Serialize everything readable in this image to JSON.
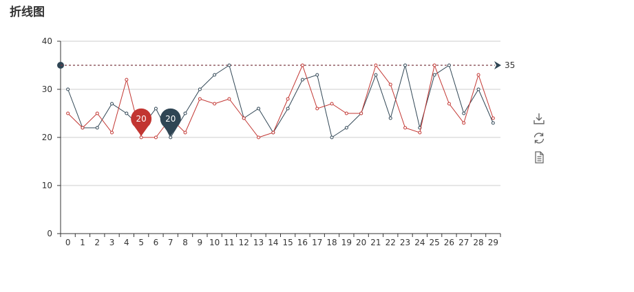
{
  "title": "折线图",
  "markline_label": "35",
  "colors": {
    "series_red": "#c23531",
    "series_dark": "#2f4554",
    "grid": "#cccccc",
    "axis": "#333333",
    "markline": "#7b3a44"
  },
  "toolbox": [
    "download-icon",
    "refresh-icon",
    "data-view-icon"
  ],
  "chart_data": {
    "type": "line",
    "categories": [
      "0",
      "1",
      "2",
      "3",
      "4",
      "5",
      "6",
      "7",
      "8",
      "9",
      "10",
      "11",
      "12",
      "13",
      "14",
      "15",
      "16",
      "17",
      "18",
      "19",
      "20",
      "21",
      "22",
      "23",
      "24",
      "25",
      "26",
      "27",
      "28",
      "29"
    ],
    "ylim": [
      0,
      40
    ],
    "yticks": [
      0,
      10,
      20,
      30,
      40
    ],
    "grid": true,
    "series": [
      {
        "color": "#2f4554",
        "values": [
          30,
          22,
          22,
          27,
          25,
          22,
          26,
          20,
          25,
          30,
          33,
          35,
          24,
          26,
          21,
          26,
          32,
          33,
          20,
          22,
          25,
          33,
          24,
          35,
          22,
          33,
          35,
          25,
          30,
          23
        ]
      },
      {
        "color": "#c23531",
        "values": [
          25,
          22,
          25,
          21,
          32,
          20,
          20,
          24,
          21,
          28,
          27,
          28,
          24,
          20,
          21,
          28,
          35,
          26,
          27,
          25,
          25,
          35,
          31,
          22,
          21,
          35,
          27,
          23,
          33,
          24
        ]
      }
    ],
    "mark_points": [
      {
        "series": 1,
        "x": "5",
        "value": 20,
        "label": "20"
      },
      {
        "series": 0,
        "x": "7",
        "value": 20,
        "label": "20"
      }
    ],
    "mark_line": {
      "value": 35,
      "label": "35"
    }
  }
}
